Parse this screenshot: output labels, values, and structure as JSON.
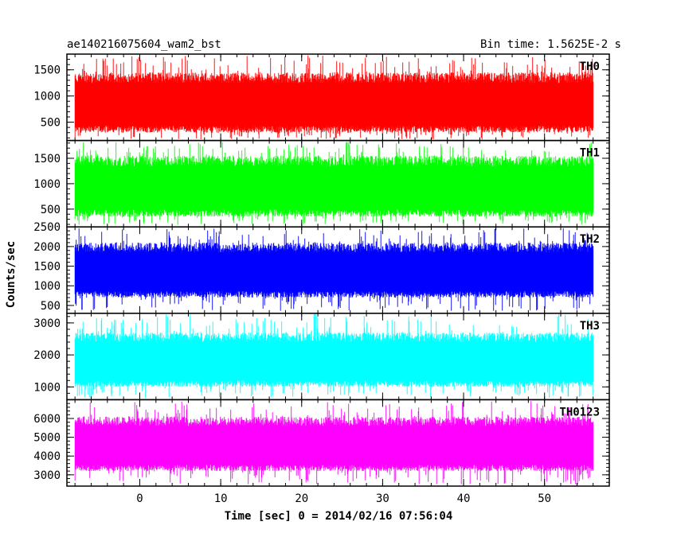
{
  "chart_data": {
    "type": "line",
    "title": "ae140216075604_wam2_bst",
    "subtitle": "Bin time: 1.5625E-2 s",
    "xlabel": "Time [sec] 0 = 2014/02/16 07:56:04",
    "ylabel": "Counts/sec",
    "xlim": [
      -9,
      58
    ],
    "x_range_data": [
      -8,
      56
    ],
    "xticks": [
      0,
      10,
      20,
      30,
      40,
      50
    ],
    "xtick_labels": [
      "0",
      "10",
      "20",
      "30",
      "40",
      "50"
    ],
    "grid": false,
    "panels": [
      {
        "name": "TH0",
        "color": "#ff0000",
        "ylim": [
          150,
          1800
        ],
        "yticks": [
          500,
          1000,
          1500
        ],
        "ytick_labels": [
          "500",
          "1000",
          "1500"
        ],
        "band_low": 300,
        "band_high": 1450,
        "spike_min": 170,
        "spike_max": 1780
      },
      {
        "name": "TH1",
        "color": "#00ff00",
        "ylim": [
          150,
          1850
        ],
        "yticks": [
          500,
          1000,
          1500
        ],
        "ytick_labels": [
          "500",
          "1000",
          "1500"
        ],
        "band_low": 350,
        "band_high": 1550,
        "spike_min": 190,
        "spike_max": 1820
      },
      {
        "name": "TH2",
        "color": "#0000ff",
        "ylim": [
          300,
          2500
        ],
        "yticks": [
          500,
          1000,
          1500,
          2000,
          2500
        ],
        "ytick_labels": [
          "500",
          "1000",
          "1500",
          "2000",
          "2500"
        ],
        "band_low": 700,
        "band_high": 2100,
        "spike_min": 340,
        "spike_max": 2480
      },
      {
        "name": "TH3",
        "color": "#00ffff",
        "ylim": [
          600,
          3300
        ],
        "yticks": [
          1000,
          2000,
          3000
        ],
        "ytick_labels": [
          "1000",
          "2000",
          "3000"
        ],
        "band_low": 1000,
        "band_high": 2700,
        "spike_min": 650,
        "spike_max": 3280
      },
      {
        "name": "TH0123",
        "color": "#ff00ff",
        "ylim": [
          2400,
          7000
        ],
        "yticks": [
          3000,
          4000,
          5000,
          6000
        ],
        "ytick_labels": [
          "3000",
          "4000",
          "5000",
          "6000"
        ],
        "band_low": 3200,
        "band_high": 6100,
        "spike_min": 2450,
        "spike_max": 6950
      }
    ]
  }
}
